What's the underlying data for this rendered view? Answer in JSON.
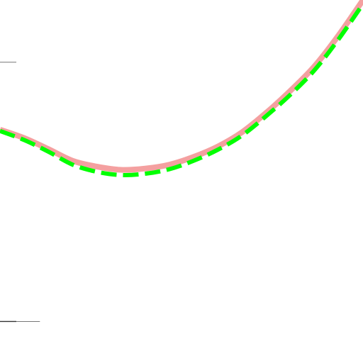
{
  "chart_data": {
    "type": "line",
    "grid": false,
    "legend": "none",
    "series": [
      {
        "style": "solid",
        "color": "#f4a0a0",
        "x": [
          -5,
          -4,
          -3,
          -2,
          -1,
          0,
          1,
          2,
          3,
          4,
          5,
          6,
          7,
          8,
          9,
          10
        ],
        "y": [
          9.6,
          8.3,
          6.6,
          4.8,
          3.9,
          3.4,
          3.6,
          4.2,
          5.4,
          7.0,
          9.2,
          12.2,
          15.6,
          19.4,
          24.2,
          29.6
        ]
      },
      {
        "style": "dashed",
        "color": "#00ff00",
        "x": [
          -5,
          -4,
          -3,
          -2,
          -1,
          0,
          1,
          2,
          3,
          4,
          5,
          6,
          7,
          8,
          9,
          10
        ],
        "y": [
          9.4,
          8.0,
          6.2,
          4.2,
          3.1,
          2.6,
          2.8,
          3.5,
          4.8,
          6.5,
          8.7,
          11.7,
          15.0,
          18.8,
          23.6,
          29.0
        ]
      }
    ],
    "xlim": [
      -5,
      10
    ],
    "ylim": [
      -26.4,
      29.6
    ],
    "reference_ticks": [
      {
        "y": 20,
        "length_fraction": 0.045
      },
      {
        "y": -20,
        "length_fraction": 0.11,
        "dark_part_fraction": 0.045
      }
    ]
  }
}
